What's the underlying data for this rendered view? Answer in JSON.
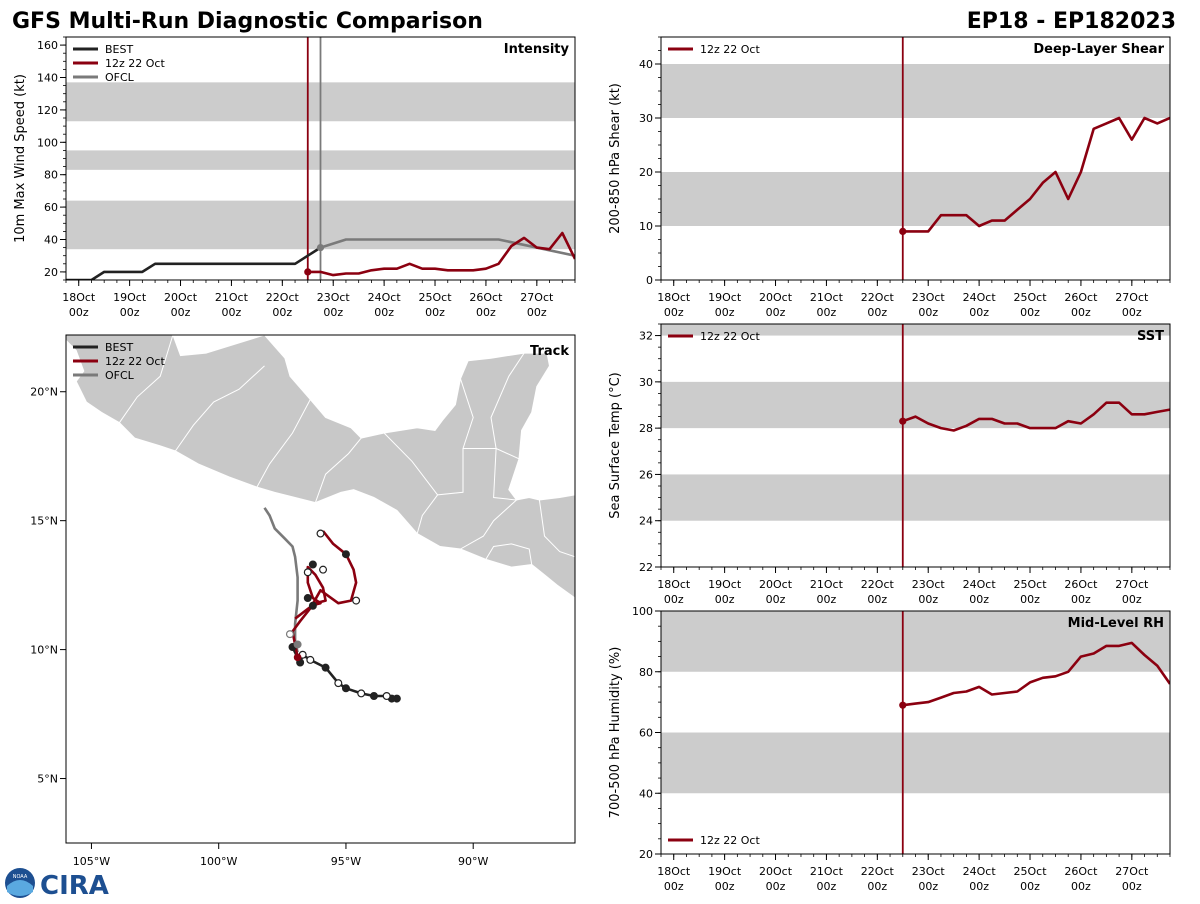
{
  "header": {
    "title": "GFS Multi-Run Diagnostic Comparison",
    "storm_id": "EP18 - EP182023"
  },
  "colors": {
    "best": "#222222",
    "run": "#8b0010",
    "ofcl": "#7a7a7a",
    "band": "#cccccc",
    "land": "#c8c8c8"
  },
  "time_axis": {
    "ticks": [
      {
        "t": 0,
        "day": "18Oct",
        "hr": "00z"
      },
      {
        "t": 1,
        "day": "19Oct",
        "hr": "00z"
      },
      {
        "t": 2,
        "day": "20Oct",
        "hr": "00z"
      },
      {
        "t": 3,
        "day": "21Oct",
        "hr": "00z"
      },
      {
        "t": 4,
        "day": "22Oct",
        "hr": "00z"
      },
      {
        "t": 5,
        "day": "23Oct",
        "hr": "00z"
      },
      {
        "t": 6,
        "day": "24Oct",
        "hr": "00z"
      },
      {
        "t": 7,
        "day": "25Oct",
        "hr": "00z"
      },
      {
        "t": 8,
        "day": "26Oct",
        "hr": "00z"
      },
      {
        "t": 9,
        "day": "27Oct",
        "hr": "00z"
      }
    ]
  },
  "chart_data": [
    {
      "id": "intensity",
      "type": "line",
      "title": "Intensity",
      "ylabel": "10m Max Wind Speed (kt)",
      "xlim": [
        -0.25,
        9.75
      ],
      "ylim": [
        15,
        165
      ],
      "yticks": [
        20,
        40,
        60,
        80,
        100,
        120,
        140,
        160
      ],
      "bands": [
        [
          34,
          64
        ],
        [
          83,
          95
        ],
        [
          113,
          137
        ]
      ],
      "init_line": 4.5,
      "ofcl_line": 4.75,
      "legend": [
        "BEST",
        "12z 22 Oct",
        "OFCL"
      ],
      "series": [
        {
          "name": "BEST",
          "key": "best",
          "x": [
            -0.25,
            0.25,
            0.5,
            0.75,
            1.0,
            1.25,
            1.5,
            2.0,
            2.5,
            3.0,
            3.5,
            4.0,
            4.25,
            4.5,
            4.75
          ],
          "y": [
            15,
            15,
            20,
            20,
            20,
            20,
            25,
            25,
            25,
            25,
            25,
            25,
            25,
            30,
            35
          ]
        },
        {
          "name": "OFCL",
          "key": "ofcl",
          "x": [
            4.75,
            5.25,
            6.25,
            7.25,
            8.25,
            9.75
          ],
          "y": [
            35,
            40,
            40,
            40,
            40,
            30
          ]
        },
        {
          "name": "12z 22 Oct",
          "key": "run",
          "marker_first": true,
          "x": [
            4.5,
            4.75,
            5.0,
            5.25,
            5.5,
            5.75,
            6.0,
            6.25,
            6.5,
            6.75,
            7.0,
            7.25,
            7.5,
            7.75,
            8.0,
            8.25,
            8.5,
            8.75,
            9.0,
            9.25,
            9.5,
            9.75
          ],
          "y": [
            20,
            20,
            18,
            19,
            19,
            21,
            22,
            22,
            25,
            22,
            22,
            21,
            21,
            21,
            22,
            25,
            36,
            41,
            35,
            34,
            44,
            28
          ]
        }
      ],
      "dots": [
        {
          "x": 4.75,
          "y": 35,
          "key": "ofcl"
        }
      ]
    },
    {
      "id": "shear",
      "type": "line",
      "title": "Deep-Layer Shear",
      "ylabel": "200-850 hPa Shear (kt)",
      "xlim": [
        -0.25,
        9.75
      ],
      "ylim": [
        0,
        45
      ],
      "yticks": [
        0,
        10,
        20,
        30,
        40
      ],
      "bands": [
        [
          10,
          20
        ],
        [
          30,
          40
        ]
      ],
      "init_line": 4.5,
      "legend": [
        "12z 22 Oct"
      ],
      "series": [
        {
          "name": "12z 22 Oct",
          "key": "run",
          "marker_first": true,
          "x": [
            4.5,
            4.75,
            5.0,
            5.25,
            5.5,
            5.75,
            6.0,
            6.25,
            6.5,
            6.75,
            7.0,
            7.25,
            7.5,
            7.75,
            8.0,
            8.25,
            8.5,
            8.75,
            9.0,
            9.25,
            9.5,
            9.75
          ],
          "y": [
            9,
            9,
            9,
            12,
            12,
            12,
            10,
            11,
            11,
            13,
            15,
            18,
            20,
            15,
            20,
            28,
            29,
            30,
            26,
            30,
            29,
            30
          ]
        }
      ]
    },
    {
      "id": "sst",
      "type": "line",
      "title": "SST",
      "ylabel": "Sea Surface Temp (°C)",
      "xlim": [
        -0.25,
        9.75
      ],
      "ylim": [
        22,
        32.5
      ],
      "yticks": [
        22,
        24,
        26,
        28,
        30,
        32
      ],
      "bands": [
        [
          24,
          26
        ],
        [
          28,
          30
        ],
        [
          32,
          32.5
        ]
      ],
      "init_line": 4.5,
      "legend": [
        "12z 22 Oct"
      ],
      "series": [
        {
          "name": "12z 22 Oct",
          "key": "run",
          "marker_first": true,
          "x": [
            4.5,
            4.75,
            5.0,
            5.25,
            5.5,
            5.75,
            6.0,
            6.25,
            6.5,
            6.75,
            7.0,
            7.25,
            7.5,
            7.75,
            8.0,
            8.25,
            8.5,
            8.75,
            9.0,
            9.25,
            9.5,
            9.75
          ],
          "y": [
            28.3,
            28.5,
            28.2,
            28.0,
            27.9,
            28.1,
            28.4,
            28.4,
            28.2,
            28.2,
            28.0,
            28.0,
            28.0,
            28.3,
            28.2,
            28.6,
            29.1,
            29.1,
            28.6,
            28.6,
            28.7,
            28.8
          ]
        }
      ]
    },
    {
      "id": "rh",
      "type": "line",
      "title": "Mid-Level RH",
      "ylabel": "700-500 hPa Humidity (%)",
      "xlim": [
        -0.25,
        9.75
      ],
      "ylim": [
        20,
        100
      ],
      "yticks": [
        20,
        40,
        60,
        80,
        100
      ],
      "bands": [
        [
          40,
          60
        ],
        [
          80,
          100
        ]
      ],
      "init_line": 4.5,
      "legend": [
        "12z 22 Oct"
      ],
      "series": [
        {
          "name": "12z 22 Oct",
          "key": "run",
          "marker_first": true,
          "x": [
            4.5,
            4.75,
            5.0,
            5.25,
            5.5,
            5.75,
            6.0,
            6.25,
            6.5,
            6.75,
            7.0,
            7.25,
            7.5,
            7.75,
            8.0,
            8.25,
            8.5,
            8.75,
            9.0,
            9.25,
            9.5,
            9.75
          ],
          "y": [
            69,
            69.5,
            70,
            71.5,
            73,
            73.5,
            75,
            72.5,
            73,
            73.5,
            76.5,
            78,
            78.5,
            80,
            85,
            86,
            88.5,
            88.5,
            89.5,
            85.5,
            82,
            76
          ]
        }
      ]
    },
    {
      "id": "track",
      "type": "scatter",
      "title": "Track",
      "xlim": [
        -106,
        -86
      ],
      "ylim": [
        2.5,
        22.2
      ],
      "xticks": [
        {
          "v": -105,
          "label": "105°W"
        },
        {
          "v": -100,
          "label": "100°W"
        },
        {
          "v": -95,
          "label": "95°W"
        },
        {
          "v": -90,
          "label": "90°W"
        }
      ],
      "yticks": [
        {
          "v": 5,
          "label": "5°N"
        },
        {
          "v": 10,
          "label": "10°N"
        },
        {
          "v": 15,
          "label": "15°N"
        },
        {
          "v": 20,
          "label": "20°N"
        }
      ],
      "legend": [
        "BEST",
        "12z 22 Oct",
        "OFCL"
      ],
      "best": {
        "lon": [
          -93.0,
          -93.2,
          -93.4,
          -93.9,
          -94.4,
          -95.0,
          -95.3,
          -95.8,
          -96.4,
          -96.7,
          -96.8,
          -97.1
        ],
        "lat": [
          8.1,
          8.1,
          8.2,
          8.2,
          8.3,
          8.5,
          8.7,
          9.3,
          9.6,
          9.8,
          9.5,
          10.1
        ],
        "filled": [
          true,
          true,
          false,
          true,
          false,
          true,
          false,
          true,
          false,
          false,
          true,
          true
        ]
      },
      "run": {
        "lon": [
          -96.9,
          -97.0,
          -97.1,
          -96.8,
          -96.4,
          -96.0,
          -95.3,
          -94.8,
          -94.6,
          -94.7,
          -95.0,
          -95.5,
          -95.9
        ],
        "lat": [
          9.7,
          10.2,
          10.7,
          11.1,
          11.6,
          12.3,
          11.8,
          11.9,
          12.6,
          13.1,
          13.7,
          14.1,
          14.6
        ]
      },
      "run_loop": {
        "lon": [
          -97.0,
          -96.6,
          -96.2,
          -95.8,
          -95.9,
          -96.2,
          -96.5,
          -96.5,
          -96.3,
          -96.0,
          -96.4
        ],
        "lat": [
          11.2,
          11.5,
          11.8,
          11.9,
          12.4,
          12.9,
          13.2,
          12.6,
          12.0,
          11.8,
          11.7
        ]
      },
      "run_points": {
        "lon": [
          -96.0,
          -95.0,
          -94.6,
          -96.3,
          -96.5,
          -96.5,
          -96.3,
          -95.9
        ],
        "lat": [
          14.5,
          13.7,
          11.9,
          13.3,
          13.0,
          12.0,
          11.7,
          13.1
        ],
        "filled": [
          false,
          true,
          false,
          true,
          false,
          true,
          true,
          false
        ]
      },
      "ofcl": {
        "lon": [
          -96.9,
          -97.0,
          -97.0,
          -96.9,
          -96.9,
          -97.0,
          -97.1,
          -97.4,
          -97.8,
          -98.0,
          -98.2
        ],
        "lat": [
          9.9,
          10.3,
          11.0,
          11.9,
          12.8,
          13.6,
          14.0,
          14.3,
          14.7,
          15.2,
          15.5
        ]
      },
      "ofcl_points": {
        "lon": [
          -97.2,
          -96.9
        ],
        "lat": [
          10.6,
          10.2
        ],
        "filled": [
          false,
          true
        ]
      }
    }
  ],
  "logo": {
    "text": "CIRA",
    "seal_text": "NOAA"
  }
}
